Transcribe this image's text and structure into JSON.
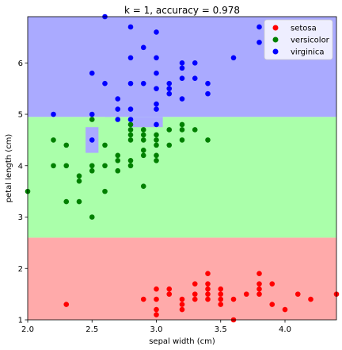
{
  "chart_data": {
    "type": "scatter",
    "title": "k = 1, accuracy = 0.978",
    "xlabel": "sepal width (cm)",
    "ylabel": "petal length (cm)",
    "xlim": [
      2.0,
      4.4
    ],
    "ylim": [
      1.0,
      6.9
    ],
    "xticks": [
      "2.0",
      "2.5",
      "3.0",
      "3.5",
      "4.0"
    ],
    "yticks": [
      "1",
      "2",
      "3",
      "4",
      "5",
      "6"
    ],
    "grid": false,
    "legend_position": "top-right",
    "decision_regions": [
      {
        "class": "setosa",
        "color": "#ffaaaa",
        "rects": [
          [
            2.0,
            4.4,
            1.0,
            2.6
          ]
        ]
      },
      {
        "class": "versicolor",
        "color": "#aaffaa",
        "rects": [
          [
            2.0,
            4.4,
            2.6,
            4.95
          ]
        ]
      },
      {
        "class": "virginica",
        "color": "#aaaaff",
        "rects": [
          [
            2.0,
            4.4,
            4.95,
            6.9
          ],
          [
            2.45,
            2.55,
            4.25,
            4.75
          ],
          [
            2.6,
            2.65,
            4.95,
            5.05
          ],
          [
            2.8,
            3.05,
            4.75,
            4.95
          ]
        ]
      }
    ],
    "series": [
      {
        "name": "setosa",
        "color": "#ff0000",
        "points": [
          [
            2.3,
            1.3
          ],
          [
            2.9,
            1.4
          ],
          [
            3.0,
            1.1
          ],
          [
            3.0,
            1.2
          ],
          [
            3.0,
            1.4
          ],
          [
            3.0,
            1.6
          ],
          [
            3.1,
            1.5
          ],
          [
            3.1,
            1.6
          ],
          [
            3.2,
            1.2
          ],
          [
            3.2,
            1.3
          ],
          [
            3.2,
            1.4
          ],
          [
            3.3,
            1.4
          ],
          [
            3.3,
            1.5
          ],
          [
            3.3,
            1.7
          ],
          [
            3.4,
            1.4
          ],
          [
            3.4,
            1.5
          ],
          [
            3.4,
            1.6
          ],
          [
            3.4,
            1.7
          ],
          [
            3.4,
            1.9
          ],
          [
            3.5,
            1.3
          ],
          [
            3.5,
            1.4
          ],
          [
            3.5,
            1.5
          ],
          [
            3.5,
            1.6
          ],
          [
            3.6,
            1.4
          ],
          [
            3.6,
            1.0
          ],
          [
            3.7,
            1.5
          ],
          [
            3.8,
            1.5
          ],
          [
            3.8,
            1.6
          ],
          [
            3.8,
            1.7
          ],
          [
            3.8,
            1.9
          ],
          [
            3.9,
            1.3
          ],
          [
            3.9,
            1.7
          ],
          [
            4.0,
            1.2
          ],
          [
            4.1,
            1.5
          ],
          [
            4.2,
            1.4
          ],
          [
            4.4,
            1.5
          ]
        ]
      },
      {
        "name": "versicolor",
        "color": "#008000",
        "points": [
          [
            2.0,
            3.5
          ],
          [
            2.2,
            4.0
          ],
          [
            2.2,
            4.5
          ],
          [
            2.3,
            3.3
          ],
          [
            2.3,
            4.0
          ],
          [
            2.3,
            4.4
          ],
          [
            2.4,
            3.3
          ],
          [
            2.4,
            3.7
          ],
          [
            2.4,
            3.8
          ],
          [
            2.5,
            3.0
          ],
          [
            2.5,
            3.9
          ],
          [
            2.5,
            4.0
          ],
          [
            2.5,
            4.9
          ],
          [
            2.6,
            3.5
          ],
          [
            2.6,
            4.0
          ],
          [
            2.6,
            4.4
          ],
          [
            2.7,
            3.9
          ],
          [
            2.7,
            4.1
          ],
          [
            2.7,
            4.2
          ],
          [
            2.8,
            4.0
          ],
          [
            2.8,
            4.1
          ],
          [
            2.8,
            4.5
          ],
          [
            2.8,
            4.6
          ],
          [
            2.8,
            4.7
          ],
          [
            2.8,
            4.8
          ],
          [
            2.9,
            3.6
          ],
          [
            2.9,
            4.2
          ],
          [
            2.9,
            4.3
          ],
          [
            2.9,
            4.5
          ],
          [
            2.9,
            4.6
          ],
          [
            2.9,
            4.7
          ],
          [
            3.0,
            4.1
          ],
          [
            3.0,
            4.2
          ],
          [
            3.0,
            4.4
          ],
          [
            3.0,
            4.5
          ],
          [
            3.0,
            4.6
          ],
          [
            3.1,
            4.4
          ],
          [
            3.1,
            4.7
          ],
          [
            3.2,
            4.5
          ],
          [
            3.2,
            4.7
          ],
          [
            3.2,
            4.8
          ],
          [
            3.3,
            4.7
          ],
          [
            3.4,
            4.5
          ]
        ]
      },
      {
        "name": "virginica",
        "color": "#0000ff",
        "points": [
          [
            2.2,
            5.0
          ],
          [
            2.5,
            4.5
          ],
          [
            2.5,
            5.0
          ],
          [
            2.5,
            5.8
          ],
          [
            2.6,
            5.6
          ],
          [
            2.6,
            6.9
          ],
          [
            2.7,
            4.9
          ],
          [
            2.7,
            5.1
          ],
          [
            2.7,
            5.3
          ],
          [
            2.8,
            4.9
          ],
          [
            2.8,
            5.1
          ],
          [
            2.8,
            5.6
          ],
          [
            2.8,
            6.1
          ],
          [
            2.8,
            6.7
          ],
          [
            2.9,
            5.6
          ],
          [
            2.9,
            6.3
          ],
          [
            3.0,
            4.8
          ],
          [
            3.0,
            5.1
          ],
          [
            3.0,
            5.2
          ],
          [
            3.0,
            5.5
          ],
          [
            3.0,
            5.8
          ],
          [
            3.0,
            6.1
          ],
          [
            3.0,
            6.6
          ],
          [
            3.1,
            5.4
          ],
          [
            3.1,
            5.5
          ],
          [
            3.1,
            5.6
          ],
          [
            3.2,
            5.3
          ],
          [
            3.2,
            5.7
          ],
          [
            3.2,
            5.9
          ],
          [
            3.2,
            6.0
          ],
          [
            3.3,
            5.7
          ],
          [
            3.3,
            6.0
          ],
          [
            3.4,
            5.4
          ],
          [
            3.4,
            5.6
          ],
          [
            3.6,
            6.1
          ],
          [
            3.8,
            6.4
          ],
          [
            3.8,
            6.7
          ]
        ]
      }
    ]
  }
}
